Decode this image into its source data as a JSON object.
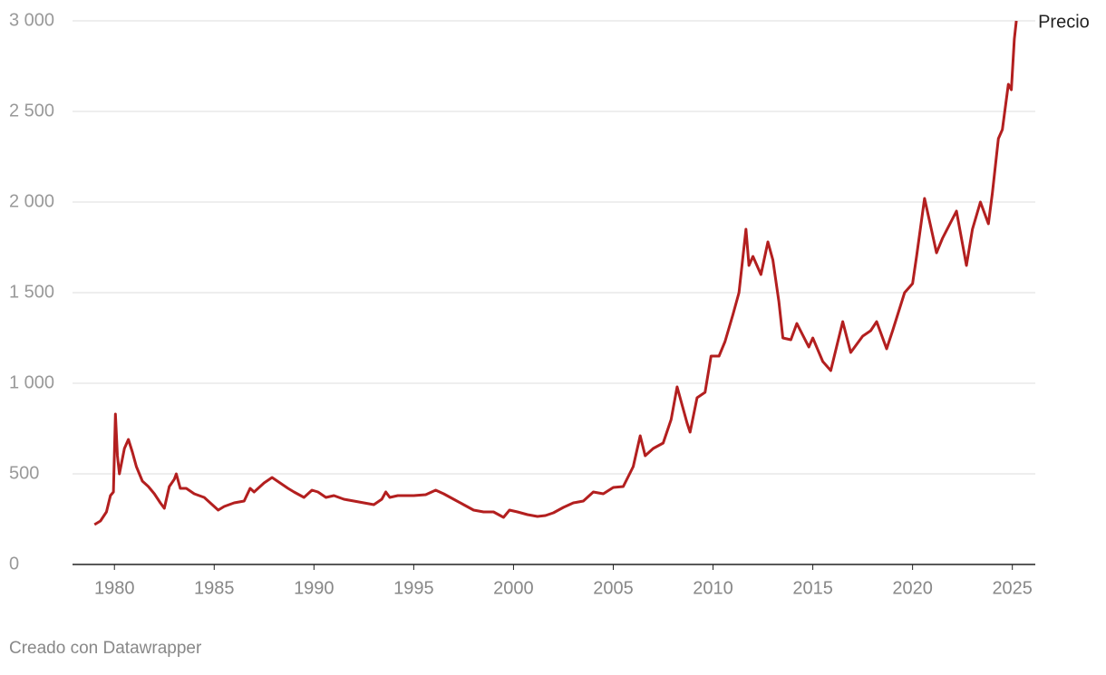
{
  "chart_data": {
    "type": "line",
    "x": [
      1979.0,
      1979.3,
      1979.6,
      1979.8,
      1979.95,
      1980.05,
      1980.15,
      1980.25,
      1980.5,
      1980.7,
      1980.9,
      1981.1,
      1981.4,
      1981.7,
      1982.0,
      1982.3,
      1982.5,
      1982.75,
      1983.0,
      1983.1,
      1983.3,
      1983.6,
      1984.0,
      1984.5,
      1984.9,
      1985.2,
      1985.5,
      1986.0,
      1986.5,
      1986.8,
      1987.0,
      1987.5,
      1987.9,
      1988.3,
      1988.7,
      1989.0,
      1989.5,
      1989.9,
      1990.2,
      1990.6,
      1991.0,
      1991.5,
      1992.0,
      1992.5,
      1993.0,
      1993.4,
      1993.6,
      1993.8,
      1994.2,
      1995.0,
      1995.6,
      1996.1,
      1996.5,
      1997.0,
      1997.5,
      1998.0,
      1998.5,
      1999.0,
      1999.5,
      1999.8,
      2000.2,
      2000.7,
      2001.2,
      2001.6,
      2002.0,
      2002.5,
      2003.0,
      2003.5,
      2004.0,
      2004.5,
      2005.0,
      2005.5,
      2006.0,
      2006.35,
      2006.6,
      2007.0,
      2007.5,
      2007.9,
      2008.2,
      2008.7,
      2008.85,
      2009.2,
      2009.6,
      2009.9,
      2010.3,
      2010.6,
      2011.0,
      2011.3,
      2011.65,
      2011.8,
      2012.0,
      2012.4,
      2012.75,
      2013.0,
      2013.3,
      2013.5,
      2013.9,
      2014.2,
      2014.8,
      2015.0,
      2015.5,
      2015.9,
      2016.5,
      2016.9,
      2017.5,
      2017.9,
      2018.2,
      2018.7,
      2019.0,
      2019.6,
      2020.0,
      2020.2,
      2020.6,
      2020.9,
      2021.2,
      2021.5,
      2022.2,
      2022.7,
      2023.0,
      2023.4,
      2023.8,
      2024.0,
      2024.3,
      2024.5,
      2024.8,
      2024.95,
      2025.1,
      2025.2
    ],
    "series": [
      {
        "name": "Precio",
        "color": "#b31f1f",
        "values": [
          220,
          240,
          290,
          380,
          400,
          830,
          600,
          500,
          640,
          690,
          620,
          540,
          460,
          430,
          390,
          340,
          310,
          430,
          470,
          500,
          420,
          420,
          390,
          370,
          330,
          300,
          320,
          340,
          350,
          420,
          400,
          450,
          480,
          450,
          420,
          400,
          370,
          410,
          400,
          370,
          380,
          360,
          350,
          340,
          330,
          360,
          400,
          370,
          380,
          380,
          385,
          410,
          390,
          360,
          330,
          300,
          290,
          290,
          260,
          300,
          290,
          275,
          265,
          270,
          285,
          315,
          340,
          350,
          400,
          390,
          425,
          430,
          540,
          710,
          600,
          640,
          670,
          800,
          980,
          780,
          730,
          920,
          950,
          1150,
          1150,
          1230,
          1380,
          1500,
          1850,
          1650,
          1700,
          1600,
          1780,
          1680,
          1450,
          1250,
          1240,
          1330,
          1200,
          1250,
          1120,
          1070,
          1340,
          1170,
          1260,
          1290,
          1340,
          1190,
          1290,
          1500,
          1550,
          1700,
          2020,
          1870,
          1720,
          1800,
          1950,
          1650,
          1850,
          2000,
          1880,
          2050,
          2350,
          2400,
          2650,
          2620,
          2900,
          3000
        ]
      }
    ],
    "xlim": [
      1977.9,
      2026.15
    ],
    "xticks": [
      1980,
      1985,
      1990,
      1995,
      2000,
      2005,
      2010,
      2015,
      2020,
      2025
    ],
    "ylim": [
      0,
      3000
    ],
    "yticks": [
      0,
      500,
      {
        "value": 1000,
        "label": "1 000"
      },
      {
        "value": 1500,
        "label": "1 500"
      },
      {
        "value": 2000,
        "label": "2 000"
      },
      {
        "value": 2500,
        "label": "2 500"
      },
      {
        "value": 3000,
        "label": "3 000"
      }
    ],
    "grid": true,
    "source": "Creado con Datawrapper"
  }
}
